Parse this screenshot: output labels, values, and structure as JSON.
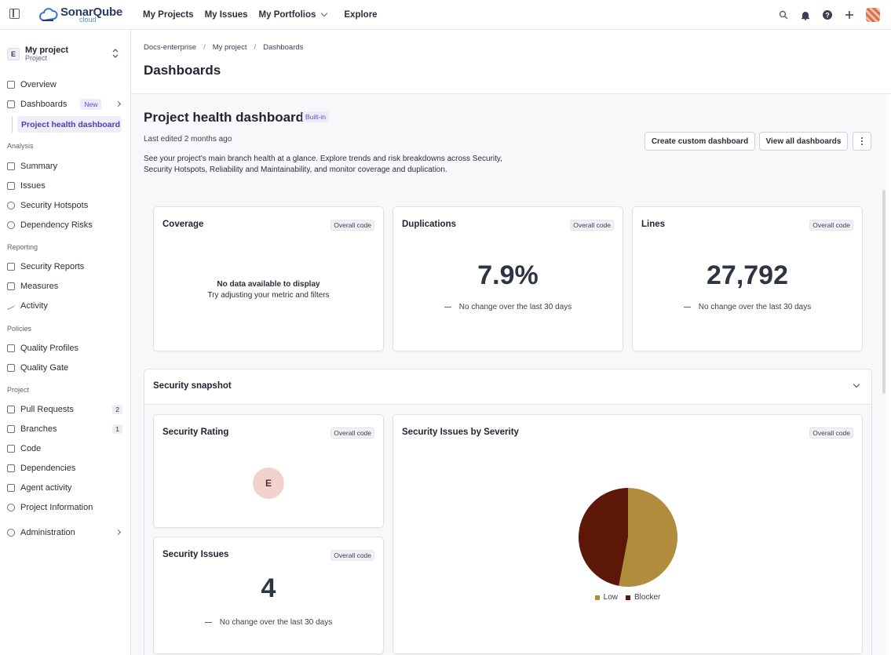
{
  "topbar": {
    "logo_title": "SonarQube",
    "logo_sub": "cloud",
    "nav": [
      "My Projects",
      "My Issues",
      "My Portfolios",
      "Explore"
    ]
  },
  "sidebar": {
    "project_badge": "E",
    "project_name": "My project",
    "project_sub": "Project",
    "overview": "Overview",
    "dashboards": "Dashboards",
    "dashboards_badge": "New",
    "project_health": "Project health dashboard",
    "sections": {
      "analysis": "Analysis",
      "reporting": "Reporting",
      "policies": "Policies",
      "project": "Project"
    },
    "analysis_items": [
      "Summary",
      "Issues",
      "Security Hotspots",
      "Dependency Risks"
    ],
    "reporting_items": [
      "Security Reports",
      "Measures",
      "Activity"
    ],
    "policies_items": [
      "Quality Profiles",
      "Quality Gate"
    ],
    "project_items": [
      "Pull Requests",
      "Branches",
      "Code",
      "Dependencies",
      "Agent activity",
      "Project Information"
    ],
    "pull_requests_count": "2",
    "branches_count": "1",
    "administration": "Administration"
  },
  "header": {
    "breadcrumb": [
      "Docs-enterprise",
      "My project",
      "Dashboards"
    ],
    "title": "Dashboards"
  },
  "dashboard": {
    "title": "Project health dashboard",
    "badge": "Built-in",
    "edited": "Last edited 2 months ago",
    "description": "See your project's main branch health at a glance. Explore trends and risk breakdowns across Security, Security Hotspots, Reliability and Maintainability, and monitor coverage and duplication.",
    "create_button": "Create custom dashboard",
    "view_all_button": "View all dashboards"
  },
  "cards": {
    "scope": "Overall code",
    "coverage": {
      "title": "Coverage",
      "nodata_title": "No data available to display",
      "nodata_sub": "Try adjusting your metric and filters"
    },
    "duplications": {
      "title": "Duplications",
      "value": "7.9%",
      "change": "No change over the last 30 days"
    },
    "lines": {
      "title": "Lines",
      "value": "27,792",
      "change": "No change over the last 30 days"
    }
  },
  "snapshot": {
    "title": "Security snapshot",
    "rating": {
      "title": "Security Rating",
      "value": "E"
    },
    "issues": {
      "title": "Security Issues",
      "value": "4",
      "change": "No change over the last 30 days"
    },
    "severity": {
      "title": "Security Issues by Severity"
    }
  },
  "chart_data": {
    "type": "pie",
    "title": "Security Issues by Severity",
    "categories": [
      "Low",
      "Blocker"
    ],
    "values": [
      53,
      47
    ],
    "colors": [
      "#b08c3c",
      "#5c1708"
    ],
    "legend": "bottom"
  },
  "colors": {
    "accent": "#5a4fcf",
    "rating_e_bg": "#f2d2cd"
  }
}
